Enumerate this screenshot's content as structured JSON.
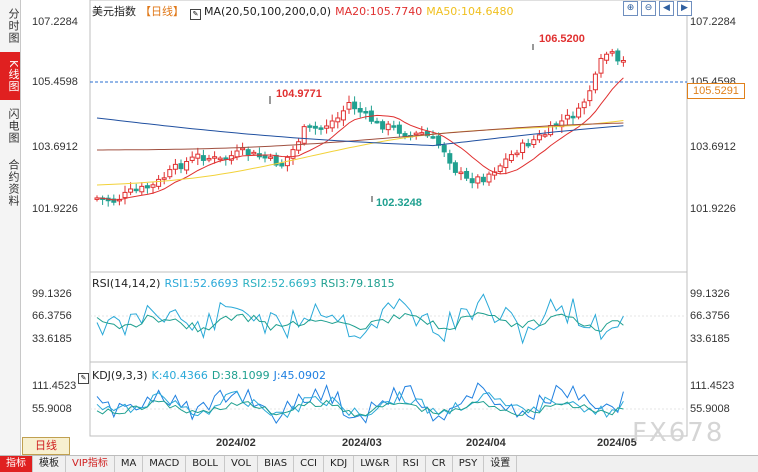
{
  "left_tabs": [
    {
      "label": "分时图",
      "active": false
    },
    {
      "label": "K线图",
      "active": true
    },
    {
      "label": "闪电图",
      "active": false
    },
    {
      "label": "合约资料",
      "active": false
    }
  ],
  "price_panel": {
    "instrument": "美元指数",
    "period_tag": "【日线】",
    "ma_label": "MA(20,50,100,200,0,0)",
    "ma20": "MA20:105.7740",
    "ma50": "MA50:104.6480",
    "current_price": "105.5291",
    "left_axis": [
      "107.2284",
      "105.4598",
      "103.6912",
      "101.9226"
    ],
    "right_axis": [
      "107.2284",
      "105.4598",
      "103.6912",
      "101.9226"
    ],
    "annotations": {
      "high1": "104.9771",
      "low1": "102.3248",
      "high2": "106.5200"
    }
  },
  "rsi_panel": {
    "label": "RSI(14,14,2)",
    "rsi1": "RSI1:52.6693",
    "rsi2": "RSI2:52.6693",
    "rsi3": "RSI3:79.1815",
    "axis": [
      "99.1326",
      "66.3756",
      "33.6185"
    ]
  },
  "kdj_panel": {
    "label": "KDJ(9,3,3)",
    "k": "K:40.4366",
    "d": "D:38.1099",
    "j": "J:45.0902",
    "axis": [
      "111.4523",
      "55.9008"
    ]
  },
  "dates": [
    "2024/02",
    "2024/03",
    "2024/04",
    "2024/05"
  ],
  "period_button": "日线",
  "bottom_tabs": [
    "指标",
    "模板",
    "VIP指标",
    "MA",
    "MACD",
    "BOLL",
    "VOL",
    "BIAS",
    "CCI",
    "KDJ",
    "LW&R",
    "RSI",
    "CR",
    "PSY",
    "设置"
  ],
  "top_icons": [
    "zoom-in-icon",
    "zoom-out-icon",
    "move-left-icon",
    "move-right-icon"
  ],
  "watermark": "FX678",
  "colors": {
    "up": "#e03030",
    "down": "#20a090",
    "ma20": "#e03030",
    "ma50": "#f2d23a",
    "ma100": "#a05040",
    "ma200": "#2050a0",
    "rsi1": "#2aa9d8",
    "rsi2": "#2ab0c0",
    "rsi3": "#20a090",
    "kdj_k": "#2aa9d8",
    "kdj_d": "#20a090",
    "kdj_j": "#2080e0"
  },
  "chart_data": {
    "type": "candlestick",
    "series": [
      {
        "name": "MA20"
      },
      {
        "name": "MA50"
      }
    ]
  }
}
